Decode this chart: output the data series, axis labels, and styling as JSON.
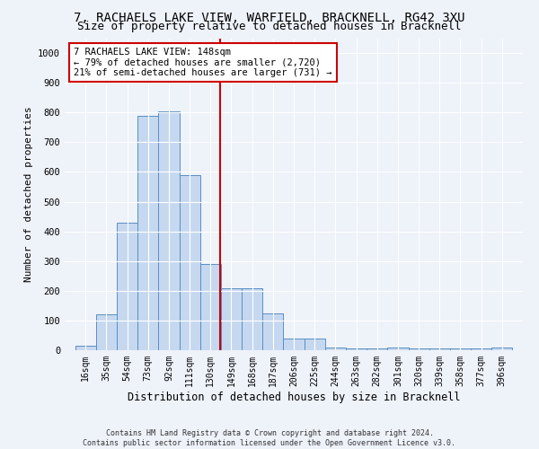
{
  "title": "7, RACHAELS LAKE VIEW, WARFIELD, BRACKNELL, RG42 3XU",
  "subtitle": "Size of property relative to detached houses in Bracknell",
  "xlabel": "Distribution of detached houses by size in Bracknell",
  "ylabel": "Number of detached properties",
  "bin_labels": [
    "16sqm",
    "35sqm",
    "54sqm",
    "73sqm",
    "92sqm",
    "111sqm",
    "130sqm",
    "149sqm",
    "168sqm",
    "187sqm",
    "206sqm",
    "225sqm",
    "244sqm",
    "263sqm",
    "282sqm",
    "301sqm",
    "320sqm",
    "339sqm",
    "358sqm",
    "377sqm",
    "396sqm"
  ],
  "bin_edges": [
    16,
    35,
    54,
    73,
    92,
    111,
    130,
    149,
    168,
    187,
    206,
    225,
    244,
    263,
    282,
    301,
    320,
    339,
    358,
    377,
    396
  ],
  "bar_heights": [
    15,
    120,
    430,
    790,
    805,
    590,
    290,
    210,
    210,
    125,
    40,
    40,
    10,
    5,
    5,
    8,
    5,
    5,
    5,
    5,
    8
  ],
  "bar_color": "#c5d8f0",
  "bar_edge_color": "#5a8fc2",
  "property_size": 148,
  "vline_color": "#cc0000",
  "annotation_text": "7 RACHAELS LAKE VIEW: 148sqm\n← 79% of detached houses are smaller (2,720)\n21% of semi-detached houses are larger (731) →",
  "annotation_box_color": "#ffffff",
  "annotation_box_edge": "#cc0000",
  "footer_line1": "Contains HM Land Registry data © Crown copyright and database right 2024.",
  "footer_line2": "Contains public sector information licensed under the Open Government Licence v3.0.",
  "ylim": [
    0,
    1050
  ],
  "background_color": "#eef2f9",
  "grid_color": "#ffffff",
  "title_fontsize": 10,
  "subtitle_fontsize": 9,
  "tick_fontsize": 7,
  "ylabel_fontsize": 8,
  "xlabel_fontsize": 8.5,
  "footer_fontsize": 6,
  "annotation_fontsize": 7.5
}
